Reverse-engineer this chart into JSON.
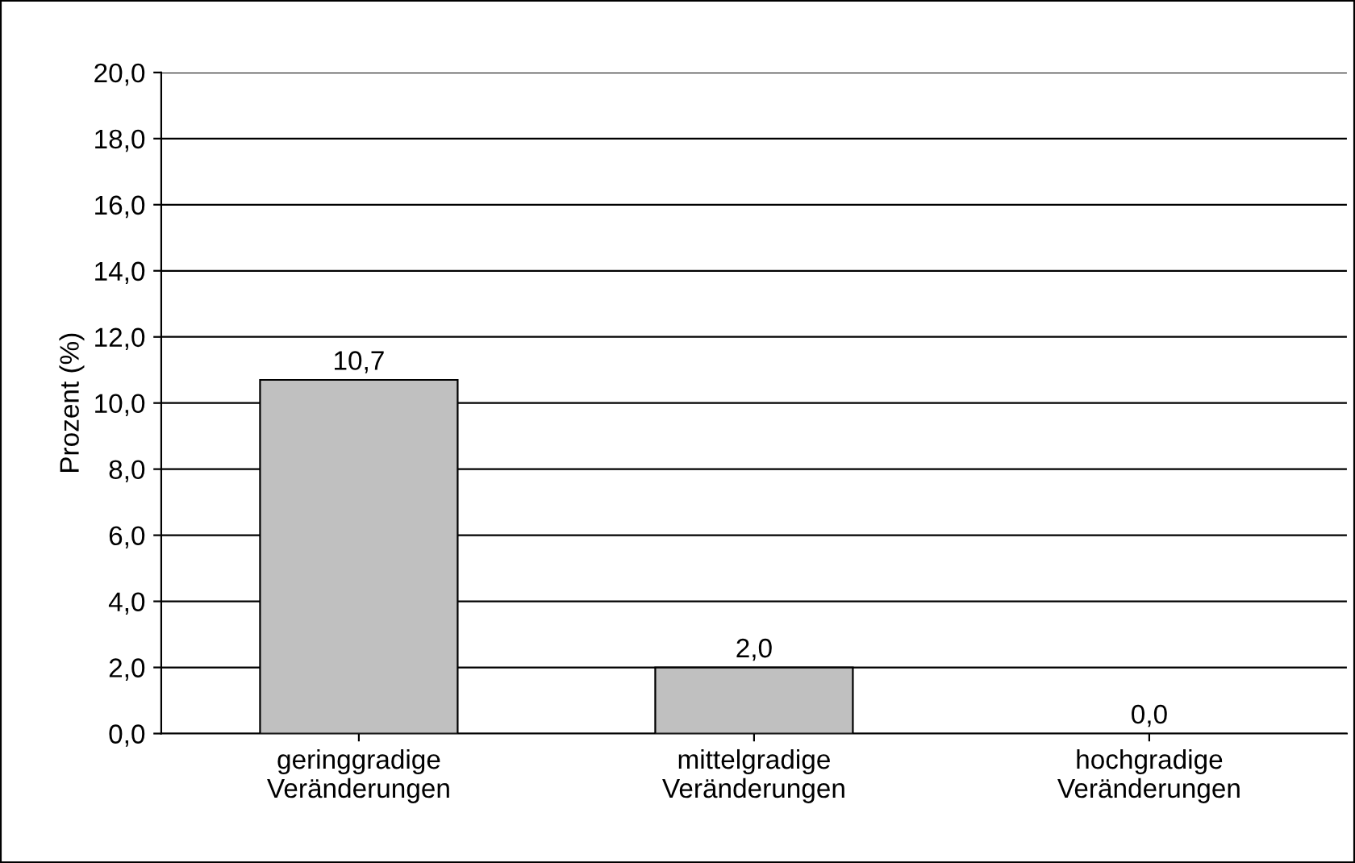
{
  "chart_data": {
    "type": "bar",
    "ylabel": "Prozent (%)",
    "categories": [
      "geringgradige\nVeränderungen",
      "mittelgradige\nVeränderungen",
      "hochgradige\nVeränderungen"
    ],
    "values": [
      10.7,
      2.0,
      0.0
    ],
    "value_labels": [
      "10,7",
      "2,0",
      "0,0"
    ],
    "color": "#c0c0c0",
    "ylim": [
      0,
      20
    ],
    "yticks": [
      {
        "value": 0,
        "label": "0,0"
      },
      {
        "value": 2,
        "label": "2,0"
      },
      {
        "value": 4,
        "label": "4,0"
      },
      {
        "value": 6,
        "label": "6,0"
      },
      {
        "value": 8,
        "label": "8,0"
      },
      {
        "value": 10,
        "label": "10,0"
      },
      {
        "value": 12,
        "label": "12,0"
      },
      {
        "value": 14,
        "label": "14,0"
      },
      {
        "value": 16,
        "label": "16,0"
      },
      {
        "value": 18,
        "label": "18,0"
      },
      {
        "value": 20,
        "label": "20,0"
      }
    ],
    "grid": "y",
    "legend": false
  }
}
